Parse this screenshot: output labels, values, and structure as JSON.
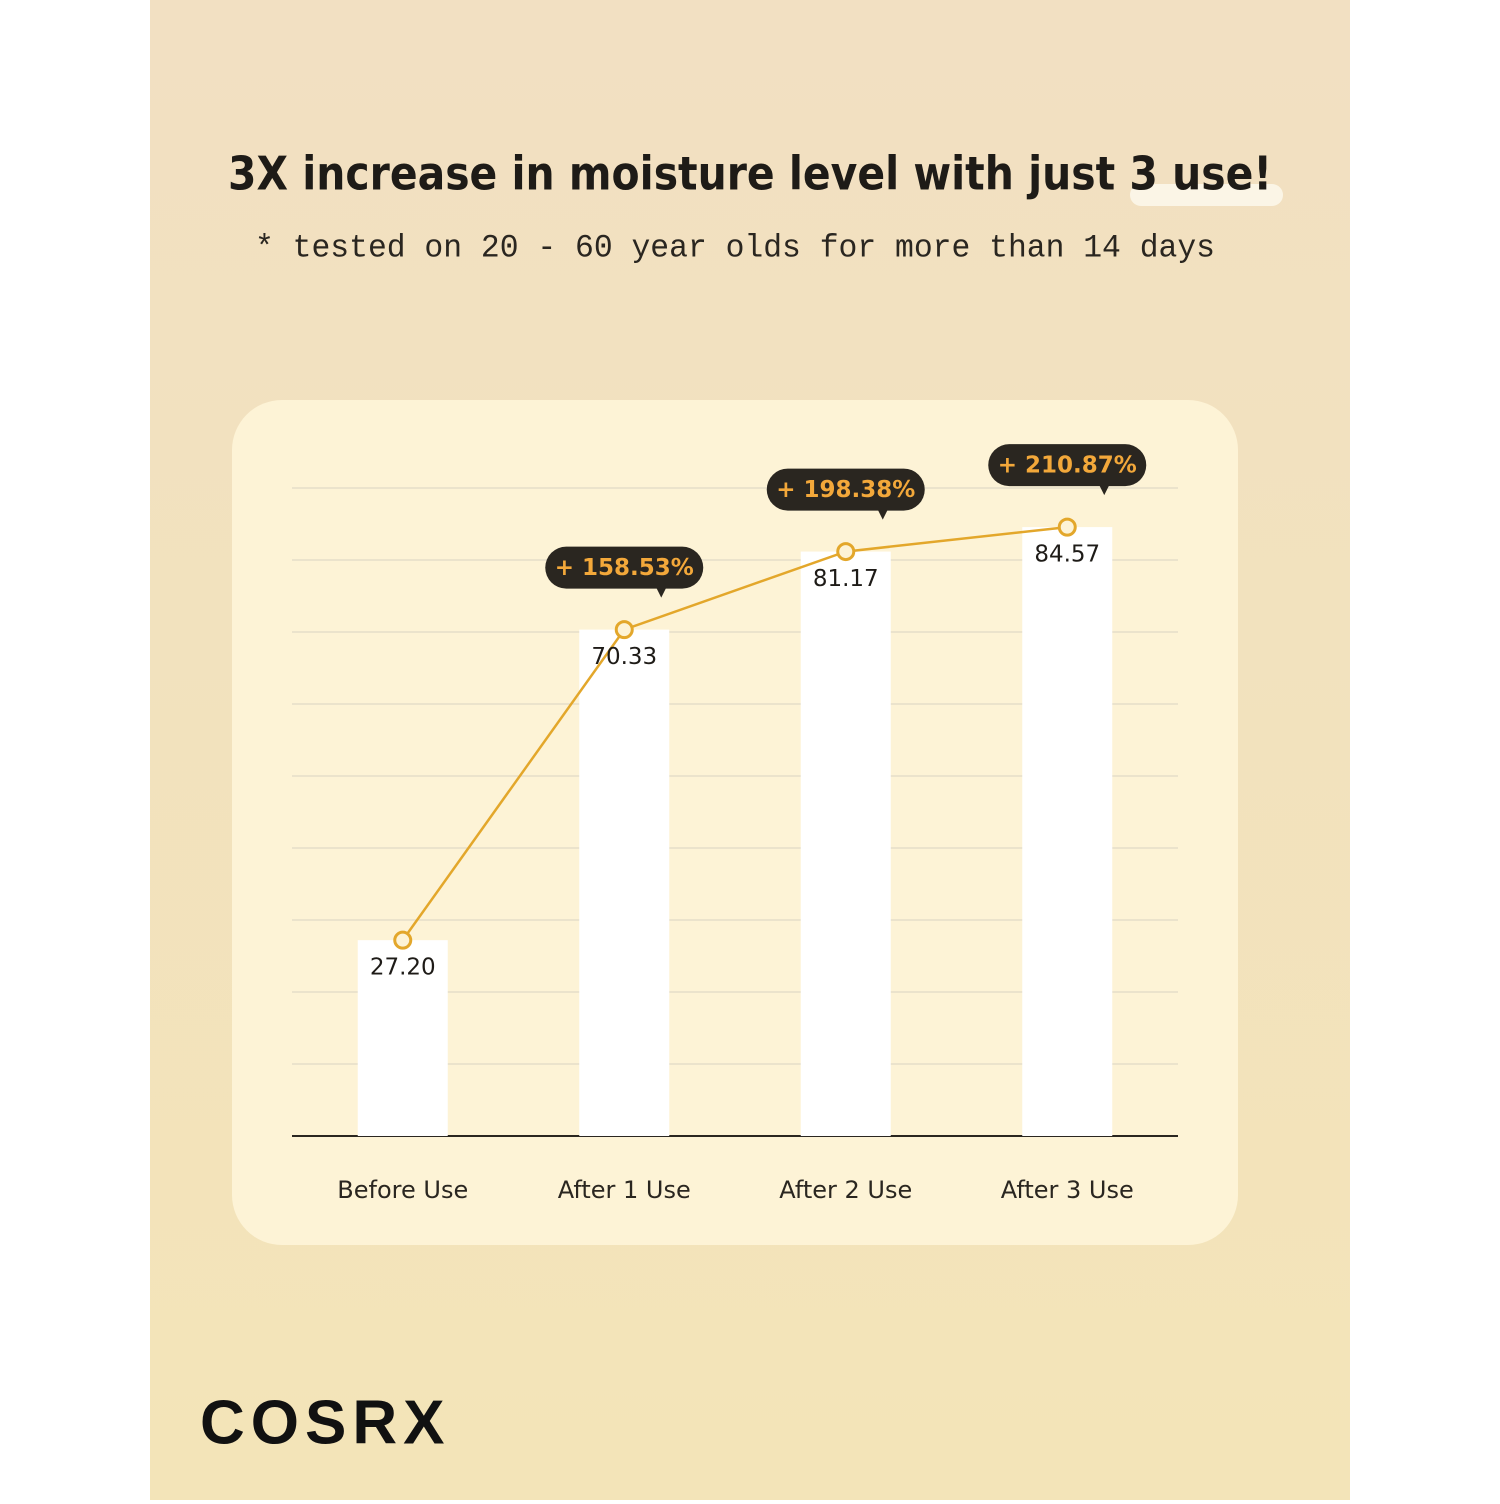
{
  "brand": "COSRX",
  "chart_data": {
    "type": "bar",
    "title": "3X increase in moisture level with just 3 use!",
    "subtitle": "* tested on 20 - 60 year olds for more than 14 days",
    "categories": [
      "Before Use",
      "After 1 Use",
      "After 2 Use",
      "After 3 Use"
    ],
    "values": [
      27.2,
      70.33,
      81.17,
      84.57
    ],
    "value_labels": [
      "27.20",
      "70.33",
      "81.17",
      "84.57"
    ],
    "callouts": [
      null,
      "+ 158.53%",
      "+ 198.38%",
      "+ 210.87%"
    ],
    "color": "#ffffff",
    "line_color": "#e3a72b",
    "ylim": [
      0,
      90
    ],
    "yticks": [
      0,
      10,
      20,
      30,
      40,
      50,
      60,
      70,
      80,
      90
    ],
    "grid": true
  }
}
